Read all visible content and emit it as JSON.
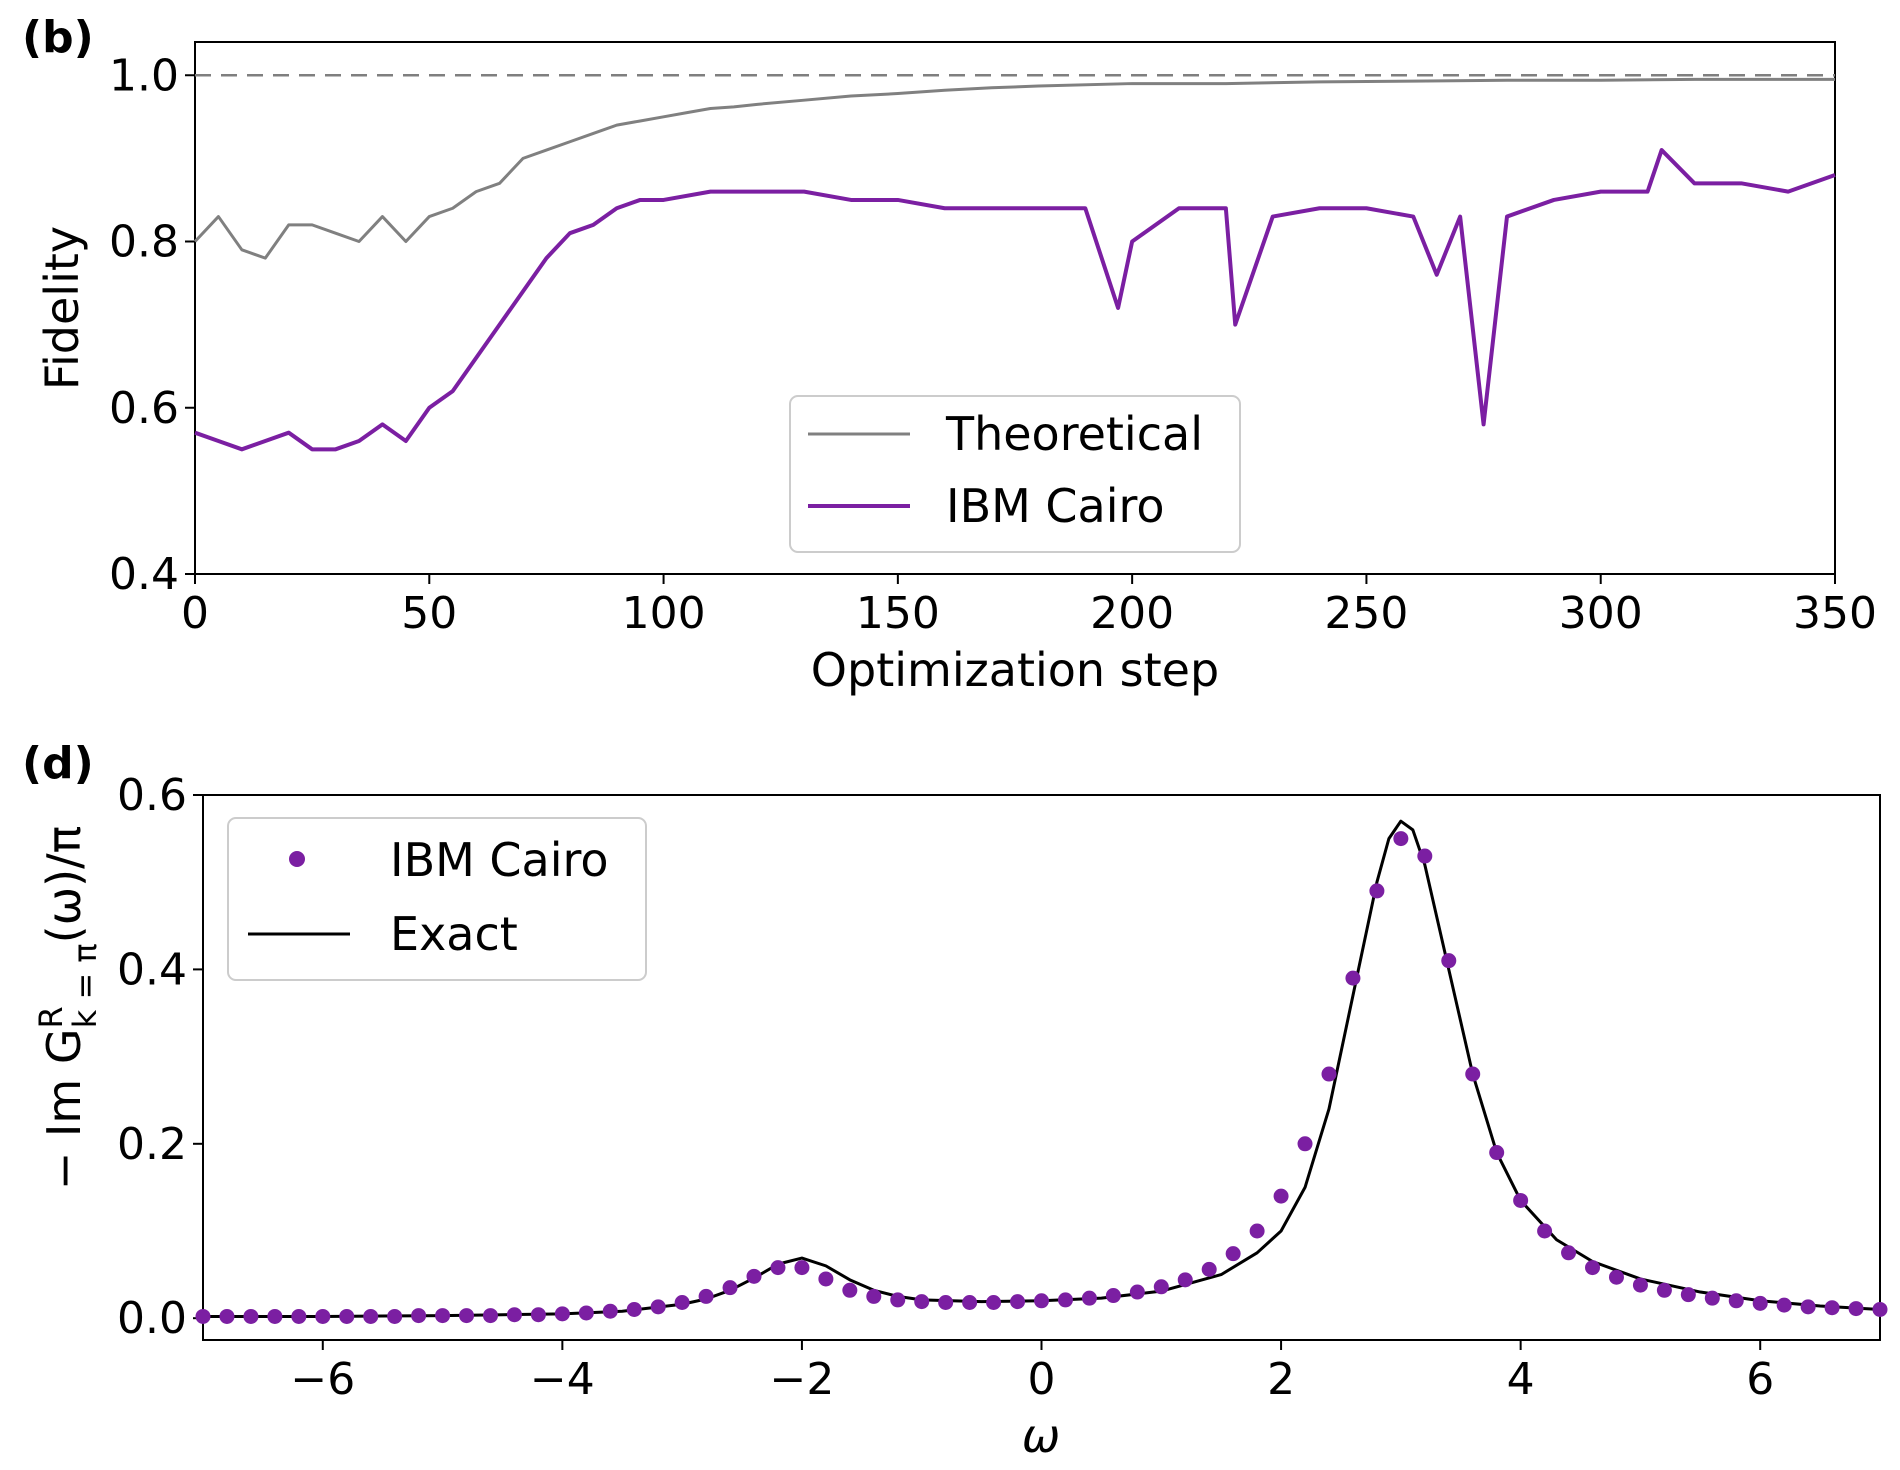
{
  "chart_data": [
    {
      "panel_label": "(b)",
      "type": "line",
      "xlabel": "Optimization step",
      "ylabel": "Fidelity",
      "xlim": [
        0,
        350
      ],
      "ylim": [
        0.4,
        1.04
      ],
      "xticks": [
        "0",
        "50",
        "100",
        "150",
        "200",
        "250",
        "300",
        "350"
      ],
      "yticks": [
        "0.4",
        "0.6",
        "0.8",
        "1.0"
      ],
      "reference_line": {
        "y": 1.0,
        "style": "dashed",
        "color": "#7f7f7f"
      },
      "legend_position": "lower-center",
      "colors": {
        "theoretical": "#808080",
        "ibm_cairo": "#7b1fa2"
      },
      "series": [
        {
          "name": "Theoretical",
          "x": [
            0,
            5,
            10,
            15,
            20,
            25,
            30,
            35,
            40,
            45,
            50,
            55,
            60,
            65,
            70,
            75,
            80,
            85,
            90,
            95,
            100,
            105,
            110,
            115,
            120,
            130,
            140,
            150,
            160,
            170,
            180,
            200,
            220,
            240,
            260,
            280,
            300,
            320,
            340,
            350
          ],
          "y": [
            0.8,
            0.83,
            0.79,
            0.78,
            0.82,
            0.82,
            0.81,
            0.8,
            0.83,
            0.8,
            0.83,
            0.84,
            0.86,
            0.87,
            0.9,
            0.91,
            0.92,
            0.93,
            0.94,
            0.945,
            0.95,
            0.955,
            0.96,
            0.962,
            0.965,
            0.97,
            0.975,
            0.978,
            0.982,
            0.985,
            0.987,
            0.99,
            0.99,
            0.992,
            0.993,
            0.994,
            0.994,
            0.995,
            0.995,
            0.995
          ]
        },
        {
          "name": "IBM Cairo",
          "x": [
            0,
            5,
            10,
            15,
            20,
            25,
            30,
            35,
            40,
            45,
            50,
            55,
            60,
            65,
            70,
            75,
            80,
            85,
            90,
            95,
            100,
            110,
            120,
            130,
            140,
            150,
            160,
            170,
            180,
            190,
            197,
            200,
            210,
            220,
            222,
            230,
            240,
            250,
            260,
            265,
            270,
            275,
            280,
            290,
            300,
            310,
            313,
            320,
            330,
            340,
            350
          ],
          "y": [
            0.57,
            0.56,
            0.55,
            0.56,
            0.57,
            0.55,
            0.55,
            0.56,
            0.58,
            0.56,
            0.6,
            0.62,
            0.66,
            0.7,
            0.74,
            0.78,
            0.81,
            0.82,
            0.84,
            0.85,
            0.85,
            0.86,
            0.86,
            0.86,
            0.85,
            0.85,
            0.84,
            0.84,
            0.84,
            0.84,
            0.72,
            0.8,
            0.84,
            0.84,
            0.7,
            0.83,
            0.84,
            0.84,
            0.83,
            0.76,
            0.83,
            0.58,
            0.83,
            0.85,
            0.86,
            0.86,
            0.91,
            0.87,
            0.87,
            0.86,
            0.88
          ]
        }
      ]
    },
    {
      "panel_label": "(d)",
      "type": "scatter",
      "xlabel": "ω",
      "ylabel": "− Im G",
      "ylabel_sup": "R",
      "ylabel_sub": "k = π",
      "ylabel_suffix": "(ω)/π",
      "xlim": [
        -7,
        7
      ],
      "ylim": [
        -0.025,
        0.6
      ],
      "xticks": [
        "−6",
        "−4",
        "−2",
        "0",
        "2",
        "4",
        "6"
      ],
      "yticks": [
        "0.0",
        "0.2",
        "0.4",
        "0.6"
      ],
      "legend_position": "upper-left",
      "colors": {
        "ibm_cairo": "#7b1fa2",
        "exact": "#000000"
      },
      "series": [
        {
          "name": "IBM Cairo",
          "x": [
            -7.0,
            -6.8,
            -6.6,
            -6.4,
            -6.2,
            -6.0,
            -5.8,
            -5.6,
            -5.4,
            -5.2,
            -5.0,
            -4.8,
            -4.6,
            -4.4,
            -4.2,
            -4.0,
            -3.8,
            -3.6,
            -3.4,
            -3.2,
            -3.0,
            -2.8,
            -2.6,
            -2.4,
            -2.2,
            -2.0,
            -1.8,
            -1.6,
            -1.4,
            -1.2,
            -1.0,
            -0.8,
            -0.6,
            -0.4,
            -0.2,
            0.0,
            0.2,
            0.4,
            0.6,
            0.8,
            1.0,
            1.2,
            1.4,
            1.6,
            1.8,
            2.0,
            2.2,
            2.4,
            2.6,
            2.8,
            3.0,
            3.2,
            3.4,
            3.6,
            3.8,
            4.0,
            4.2,
            4.4,
            4.6,
            4.8,
            5.0,
            5.2,
            5.4,
            5.6,
            5.8,
            6.0,
            6.2,
            6.4,
            6.6,
            6.8,
            7.0
          ],
          "y": [
            0.002,
            0.002,
            0.002,
            0.002,
            0.002,
            0.002,
            0.002,
            0.002,
            0.002,
            0.003,
            0.003,
            0.003,
            0.003,
            0.004,
            0.004,
            0.005,
            0.006,
            0.008,
            0.01,
            0.013,
            0.018,
            0.025,
            0.035,
            0.048,
            0.058,
            0.058,
            0.045,
            0.032,
            0.025,
            0.021,
            0.019,
            0.018,
            0.018,
            0.018,
            0.019,
            0.02,
            0.021,
            0.023,
            0.026,
            0.03,
            0.036,
            0.044,
            0.056,
            0.074,
            0.1,
            0.14,
            0.2,
            0.28,
            0.39,
            0.49,
            0.55,
            0.53,
            0.41,
            0.28,
            0.19,
            0.135,
            0.1,
            0.075,
            0.058,
            0.047,
            0.038,
            0.032,
            0.027,
            0.023,
            0.02,
            0.017,
            0.015,
            0.013,
            0.012,
            0.011,
            0.01
          ]
        },
        {
          "name": "Exact",
          "x": [
            -7.0,
            -6.0,
            -5.0,
            -4.5,
            -4.0,
            -3.5,
            -3.0,
            -2.8,
            -2.6,
            -2.4,
            -2.2,
            -2.0,
            -1.8,
            -1.6,
            -1.4,
            -1.2,
            -1.0,
            -0.5,
            0.0,
            0.5,
            1.0,
            1.5,
            1.8,
            2.0,
            2.2,
            2.4,
            2.6,
            2.8,
            2.9,
            3.0,
            3.1,
            3.2,
            3.4,
            3.6,
            3.8,
            4.0,
            4.3,
            4.6,
            5.0,
            5.5,
            6.0,
            6.5,
            7.0
          ],
          "y": [
            0.002,
            0.002,
            0.003,
            0.004,
            0.005,
            0.008,
            0.016,
            0.022,
            0.032,
            0.046,
            0.062,
            0.069,
            0.06,
            0.044,
            0.032,
            0.025,
            0.021,
            0.019,
            0.02,
            0.023,
            0.031,
            0.05,
            0.075,
            0.1,
            0.15,
            0.24,
            0.37,
            0.5,
            0.55,
            0.57,
            0.56,
            0.52,
            0.4,
            0.28,
            0.19,
            0.135,
            0.09,
            0.065,
            0.045,
            0.03,
            0.02,
            0.014,
            0.01
          ]
        }
      ]
    }
  ]
}
